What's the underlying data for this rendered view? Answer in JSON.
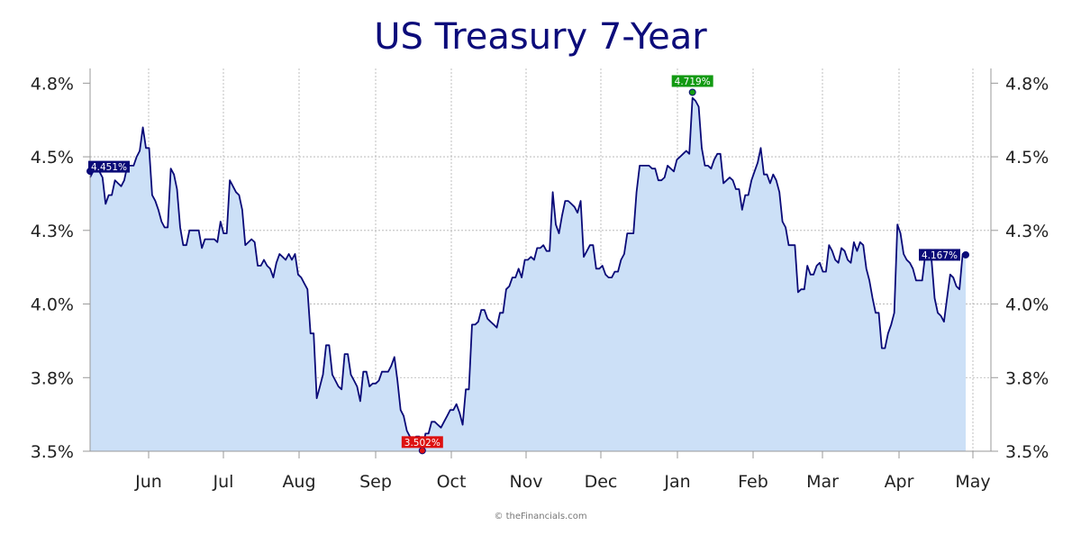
{
  "colors": {
    "line": "#0a0a78",
    "fill": "#cce0f7",
    "grid": "#b0b0b0",
    "max_badge": "#129a12",
    "min_badge": "#dd1111",
    "end_badge": "#0a0a78"
  },
  "chart_data": {
    "type": "area",
    "title": "US Treasury 7-Year",
    "credit": "© theFinancials.com",
    "ylim": [
      3.5,
      4.8
    ],
    "y_ticks": [
      3.5,
      3.75,
      4.0,
      4.25,
      4.5,
      4.75
    ],
    "y_tick_labels": [
      "3.5%",
      "3.8%",
      "4.0%",
      "4.3%",
      "4.5%",
      "4.8%"
    ],
    "x_tick_labels": [
      "Jun",
      "Jul",
      "Aug",
      "Sep",
      "Oct",
      "Nov",
      "Dec",
      "Jan",
      "Feb",
      "Mar",
      "Apr",
      "May"
    ],
    "grid": true,
    "annotations": {
      "start": {
        "label": "4.451%",
        "value": 4.451
      },
      "max": {
        "label": "4.719%",
        "value": 4.719
      },
      "min": {
        "label": "3.502%",
        "value": 3.502
      },
      "end": {
        "label": "4.167%",
        "value": 4.167
      }
    },
    "series": [
      {
        "values": [
          4.43,
          4.45,
          4.46,
          4.45,
          4.43,
          4.34,
          4.37,
          4.37,
          4.42,
          4.41,
          4.4,
          4.42,
          4.47,
          4.47,
          4.47,
          4.5,
          4.52,
          4.6,
          4.53,
          4.53,
          4.37,
          4.35,
          4.32,
          4.28,
          4.26,
          4.26,
          4.46,
          4.44,
          4.39,
          4.26,
          4.2,
          4.2,
          4.25,
          4.25,
          4.25,
          4.25,
          4.19,
          4.22,
          4.22,
          4.22,
          4.22,
          4.21,
          4.28,
          4.24,
          4.24,
          4.42,
          4.4,
          4.38,
          4.37,
          4.32,
          4.2,
          4.21,
          4.22,
          4.21,
          4.13,
          4.13,
          4.15,
          4.13,
          4.12,
          4.09,
          4.14,
          4.17,
          4.16,
          4.15,
          4.17,
          4.15,
          4.17,
          4.1,
          4.09,
          4.07,
          4.05,
          3.9,
          3.9,
          3.68,
          3.72,
          3.76,
          3.86,
          3.86,
          3.76,
          3.74,
          3.72,
          3.71,
          3.83,
          3.83,
          3.76,
          3.74,
          3.72,
          3.67,
          3.77,
          3.77,
          3.72,
          3.73,
          3.73,
          3.74,
          3.77,
          3.77,
          3.77,
          3.79,
          3.82,
          3.74,
          3.64,
          3.62,
          3.57,
          3.55,
          3.54,
          3.55,
          3.55,
          3.5,
          3.56,
          3.56,
          3.6,
          3.6,
          3.59,
          3.58,
          3.6,
          3.62,
          3.64,
          3.64,
          3.66,
          3.63,
          3.59,
          3.71,
          3.71,
          3.93,
          3.93,
          3.94,
          3.98,
          3.98,
          3.95,
          3.94,
          3.93,
          3.92,
          3.97,
          3.97,
          4.05,
          4.06,
          4.09,
          4.09,
          4.12,
          4.09,
          4.15,
          4.15,
          4.16,
          4.15,
          4.19,
          4.19,
          4.2,
          4.18,
          4.18,
          4.38,
          4.27,
          4.24,
          4.3,
          4.35,
          4.35,
          4.34,
          4.33,
          4.31,
          4.35,
          4.16,
          4.18,
          4.2,
          4.2,
          4.12,
          4.12,
          4.13,
          4.1,
          4.09,
          4.09,
          4.11,
          4.11,
          4.15,
          4.17,
          4.24,
          4.24,
          4.24,
          4.38,
          4.47,
          4.47,
          4.47,
          4.47,
          4.46,
          4.46,
          4.42,
          4.42,
          4.43,
          4.47,
          4.46,
          4.45,
          4.49,
          4.5,
          4.51,
          4.52,
          4.51,
          4.7,
          4.69,
          4.67,
          4.53,
          4.47,
          4.47,
          4.46,
          4.49,
          4.51,
          4.51,
          4.41,
          4.42,
          4.43,
          4.42,
          4.39,
          4.39,
          4.32,
          4.37,
          4.37,
          4.42,
          4.45,
          4.48,
          4.53,
          4.44,
          4.44,
          4.41,
          4.44,
          4.42,
          4.38,
          4.28,
          4.26,
          4.2,
          4.2,
          4.2,
          4.04,
          4.05,
          4.05,
          4.13,
          4.1,
          4.1,
          4.13,
          4.14,
          4.11,
          4.11,
          4.2,
          4.18,
          4.15,
          4.14,
          4.19,
          4.18,
          4.15,
          4.14,
          4.21,
          4.18,
          4.21,
          4.2,
          4.12,
          4.08,
          4.02,
          3.97,
          3.97,
          3.85,
          3.85,
          3.9,
          3.93,
          3.97,
          4.27,
          4.24,
          4.17,
          4.15,
          4.14,
          4.12,
          4.08,
          4.08,
          4.08,
          4.17,
          4.18,
          4.15,
          4.02,
          3.97,
          3.96,
          3.94,
          4.02,
          4.1,
          4.09,
          4.06,
          4.05,
          4.17,
          4.16
        ]
      }
    ]
  }
}
